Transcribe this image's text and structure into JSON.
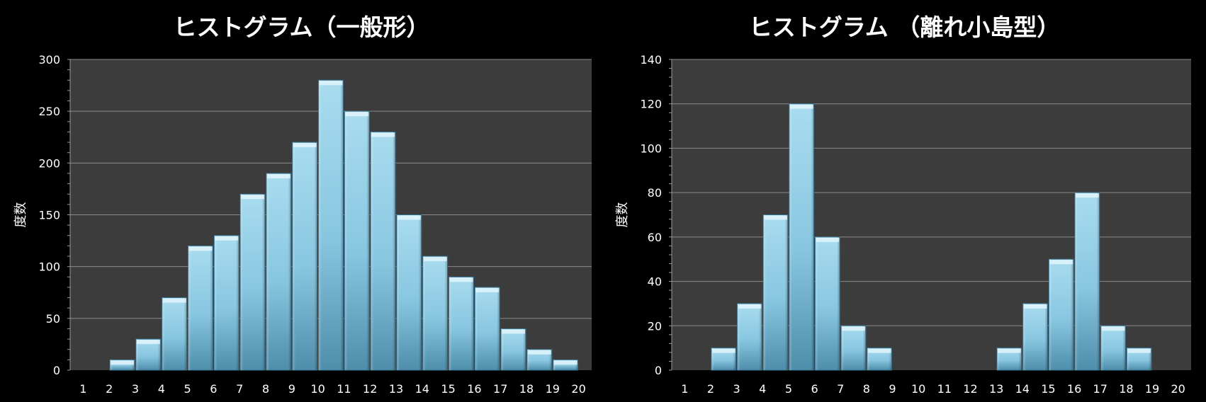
{
  "chart_data": [
    {
      "type": "bar",
      "title": "ヒストグラム（一般形）",
      "xlabel": "",
      "ylabel": "度数",
      "ylim": [
        0,
        300
      ],
      "ytick_step": 50,
      "grid": true,
      "categories": [
        "1",
        "2",
        "3",
        "4",
        "5",
        "6",
        "7",
        "8",
        "9",
        "10",
        "11",
        "12",
        "13",
        "14",
        "15",
        "16",
        "17",
        "18",
        "19",
        "20"
      ],
      "values": [
        0,
        10,
        30,
        70,
        120,
        130,
        170,
        190,
        220,
        280,
        250,
        230,
        150,
        110,
        90,
        80,
        40,
        20,
        10,
        0
      ]
    },
    {
      "type": "bar",
      "title": "ヒストグラム （離れ小島型）",
      "xlabel": "",
      "ylabel": "度数",
      "ylim": [
        0,
        140
      ],
      "ytick_step": 20,
      "grid": true,
      "categories": [
        "1",
        "2",
        "3",
        "4",
        "5",
        "6",
        "7",
        "8",
        "9",
        "10",
        "11",
        "12",
        "13",
        "14",
        "15",
        "16",
        "17",
        "18",
        "19",
        "20"
      ],
      "values": [
        0,
        10,
        30,
        70,
        120,
        60,
        20,
        10,
        0,
        0,
        0,
        0,
        10,
        30,
        50,
        80,
        20,
        10,
        0,
        0
      ]
    }
  ],
  "colors": {
    "page_background": "#000000",
    "plot_background": "#3c3c3c",
    "gridline": "#8a8a8a",
    "bar_light": "#a9dcef",
    "bar_mid": "#88c6e0",
    "bar_dark": "#4f8eab",
    "text": "#ffffff"
  }
}
